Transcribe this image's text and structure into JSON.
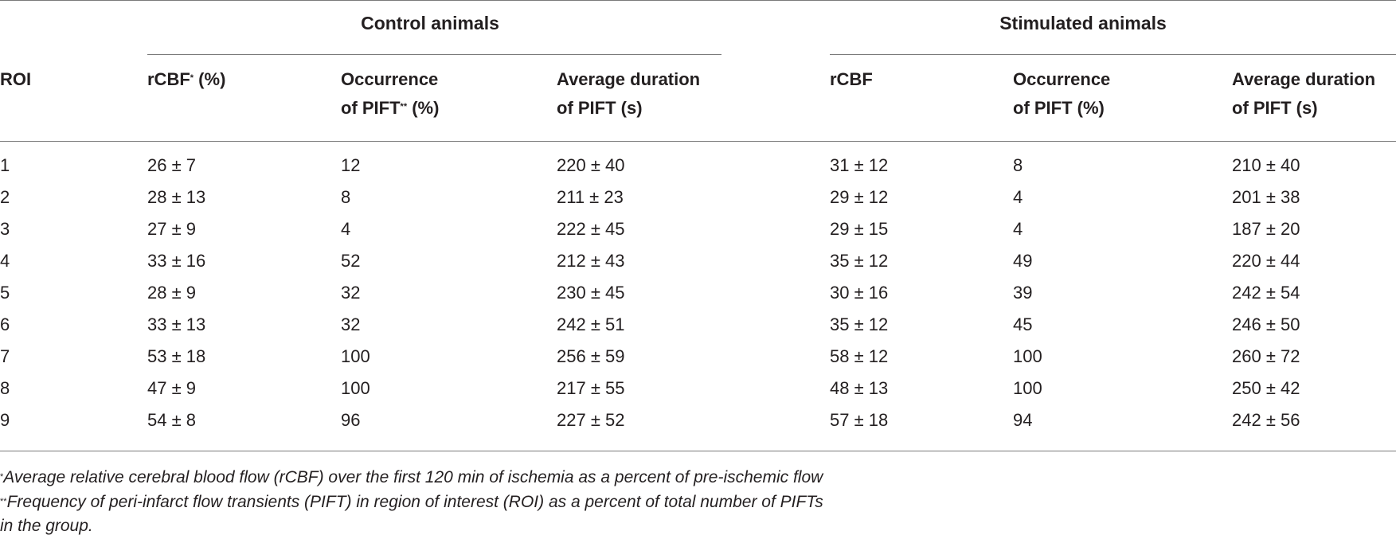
{
  "table": {
    "groups": {
      "control": "Control animals",
      "stimulated": "Stimulated animals"
    },
    "headers": {
      "roi": "ROI",
      "control_rcbf": "rCBF",
      "control_rcbf_mark": "*",
      "control_rcbf_unit": " (%)",
      "control_occ_line1": "Occurrence",
      "control_occ_line2": "of PIFT",
      "control_occ_mark": "**",
      "control_occ_unit": " (%)",
      "control_dur_line1": "Average duration",
      "control_dur_line2": "of PIFT (s)",
      "stim_rcbf": "rCBF",
      "stim_occ_line1": "Occurrence",
      "stim_occ_line2": "of PIFT (%)",
      "stim_dur_line1": "Average duration",
      "stim_dur_line2": "of PIFT (s)"
    },
    "rows": [
      {
        "roi": "1",
        "c_rcbf": "26 ± 7",
        "c_occ": "12",
        "c_dur": "220 ± 40",
        "s_rcbf": "31 ± 12",
        "s_occ": "8",
        "s_dur": "210 ± 40"
      },
      {
        "roi": "2",
        "c_rcbf": "28 ± 13",
        "c_occ": "8",
        "c_dur": "211 ± 23",
        "s_rcbf": "29 ± 12",
        "s_occ": "4",
        "s_dur": "201 ± 38"
      },
      {
        "roi": "3",
        "c_rcbf": "27 ± 9",
        "c_occ": "4",
        "c_dur": "222 ± 45",
        "s_rcbf": "29 ± 15",
        "s_occ": "4",
        "s_dur": "187 ± 20"
      },
      {
        "roi": "4",
        "c_rcbf": "33 ± 16",
        "c_occ": "52",
        "c_dur": "212 ± 43",
        "s_rcbf": "35 ± 12",
        "s_occ": "49",
        "s_dur": "220 ± 44"
      },
      {
        "roi": "5",
        "c_rcbf": "28 ± 9",
        "c_occ": "32",
        "c_dur": "230 ± 45",
        "s_rcbf": "30 ± 16",
        "s_occ": "39",
        "s_dur": "242 ± 54"
      },
      {
        "roi": "6",
        "c_rcbf": "33 ± 13",
        "c_occ": "32",
        "c_dur": "242 ± 51",
        "s_rcbf": "35 ± 12",
        "s_occ": "45",
        "s_dur": "246 ± 50"
      },
      {
        "roi": "7",
        "c_rcbf": "53 ± 18",
        "c_occ": "100",
        "c_dur": "256 ± 59",
        "s_rcbf": "58 ± 12",
        "s_occ": "100",
        "s_dur": "260 ± 72"
      },
      {
        "roi": "8",
        "c_rcbf": "47 ± 9",
        "c_occ": "100",
        "c_dur": "217 ± 55",
        "s_rcbf": "48 ± 13",
        "s_occ": "100",
        "s_dur": "250 ± 42"
      },
      {
        "roi": "9",
        "c_rcbf": "54 ± 8",
        "c_occ": "96",
        "c_dur": "227 ± 52",
        "s_rcbf": "57 ± 18",
        "s_occ": "94",
        "s_dur": "242 ± 56"
      }
    ]
  },
  "footnotes": {
    "note1_mark": "*",
    "note1_text": "Average relative cerebral blood flow (rCBF) over the first 120 min of ischemia as a percent of pre-ischemic flow",
    "note2_mark": "**",
    "note2_line1": "Frequency of peri-infarct flow transients (PIFT) in region of interest (ROI) as a percent of total number of PIFTs",
    "note2_line2": "in the group."
  }
}
